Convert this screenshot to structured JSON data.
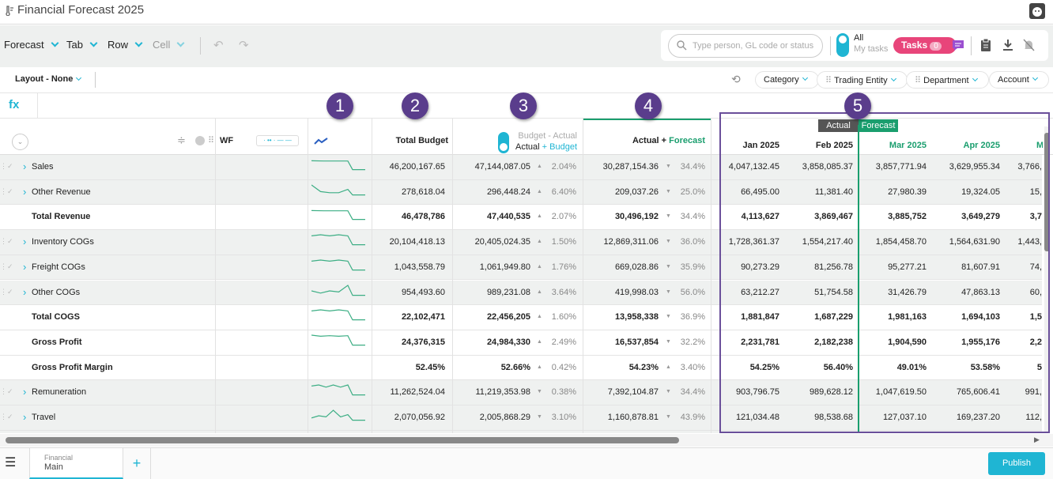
{
  "app": {
    "title": "Financial Forecast 2025"
  },
  "toolbar": {
    "menus": [
      "Forecast",
      "Tab",
      "Row",
      "Cell"
    ],
    "undo": "undo-icon",
    "redo": "redo-icon",
    "search_placeholder": "Type person, GL code or status",
    "toggle_all": "All",
    "toggle_my_tasks": "My tasks",
    "tasks_label": "Tasks",
    "tasks_count": "0"
  },
  "layout": {
    "label": "Layout - None",
    "filters": [
      "Category",
      "Trading Entity",
      "Department",
      "Account"
    ]
  },
  "formula": {
    "fx": "fx"
  },
  "header": {
    "wf": "WF",
    "total_budget": "Total Budget",
    "ba_top": "Budget - Actual",
    "ba_bottom_a": "Actual",
    "ba_bottom_b": "+ Budget",
    "af_a": "Actual",
    "af_plus": " + ",
    "af_b": "Forecast",
    "actual_tag": "Actual",
    "forecast_tag": "Forecast",
    "months": [
      "Jan 2025",
      "Feb 2025",
      "Mar 2025",
      "Apr 2025",
      "May 2025"
    ]
  },
  "callouts": [
    "1",
    "2",
    "3",
    "4",
    "5"
  ],
  "colors": {
    "accent": "#1fb5d3",
    "forecast": "#1a9e6e",
    "callout": "#5a3d8c",
    "tasks": "#e8457a"
  },
  "rows": [
    {
      "name": "Sales",
      "expand": true,
      "bold": false,
      "spark": [
        9,
        8.8,
        8.8,
        8.8,
        1,
        1
      ],
      "total_budget": "46,200,167.65",
      "ba": "47,144,087.05",
      "ba_dir": "up",
      "ba_pct": "2.04%",
      "af": "30,287,154.36",
      "af_dir": "down",
      "af_pct": "34.4%",
      "months": [
        "4,047,132.45",
        "3,858,085.37",
        "3,857,771.94",
        "3,629,955.34",
        "3,766,"
      ]
    },
    {
      "name": "Other Revenue",
      "expand": true,
      "bold": false,
      "spark": [
        10,
        4,
        3,
        3,
        6,
        1,
        1
      ],
      "total_budget": "278,618.04",
      "ba": "296,448.24",
      "ba_dir": "up",
      "ba_pct": "6.40%",
      "af": "209,037.26",
      "af_dir": "down",
      "af_pct": "25.0%",
      "months": [
        "66,495.00",
        "11,381.40",
        "27,980.39",
        "19,324.05",
        "15,"
      ]
    },
    {
      "name": "Total Revenue",
      "expand": false,
      "bold": true,
      "spark": [
        9,
        8.8,
        8.8,
        8.8,
        1,
        1
      ],
      "total_budget": "46,478,786",
      "ba": "47,440,535",
      "ba_dir": "up",
      "ba_pct": "2.07%",
      "af": "30,496,192",
      "af_dir": "down",
      "af_pct": "34.4%",
      "months": [
        "4,113,627",
        "3,869,467",
        "3,885,752",
        "3,649,279",
        "3,7"
      ]
    },
    {
      "name": "Inventory COGs",
      "expand": true,
      "bold": false,
      "spark": [
        9,
        10,
        9,
        10,
        9,
        1,
        1
      ],
      "total_budget": "20,104,418.13",
      "ba": "20,405,024.35",
      "ba_dir": "up",
      "ba_pct": "1.50%",
      "af": "12,869,311.06",
      "af_dir": "down",
      "af_pct": "36.0%",
      "months": [
        "1,728,361.37",
        "1,554,217.40",
        "1,854,458.70",
        "1,564,631.90",
        "1,443,"
      ]
    },
    {
      "name": "Freight COGs",
      "expand": true,
      "bold": false,
      "spark": [
        9,
        10,
        9,
        10,
        9,
        1,
        1
      ],
      "total_budget": "1,043,558.79",
      "ba": "1,061,949.80",
      "ba_dir": "up",
      "ba_pct": "1.76%",
      "af": "669,028.86",
      "af_dir": "down",
      "af_pct": "35.9%",
      "months": [
        "90,273.29",
        "81,256.78",
        "95,277.21",
        "81,607.91",
        "74,"
      ]
    },
    {
      "name": "Other COGs",
      "expand": true,
      "bold": false,
      "spark": [
        5,
        3,
        5,
        4,
        10,
        1,
        1
      ],
      "total_budget": "954,493.60",
      "ba": "989,231.08",
      "ba_dir": "up",
      "ba_pct": "3.64%",
      "af": "419,998.03",
      "af_dir": "down",
      "af_pct": "56.0%",
      "months": [
        "63,212.27",
        "51,754.58",
        "31,426.79",
        "47,863.13",
        "60,"
      ]
    },
    {
      "name": "Total COGS",
      "expand": false,
      "bold": true,
      "spark": [
        9,
        10,
        9,
        10,
        9,
        1,
        1
      ],
      "total_budget": "22,102,471",
      "ba": "22,456,205",
      "ba_dir": "up",
      "ba_pct": "1.60%",
      "af": "13,958,338",
      "af_dir": "down",
      "af_pct": "36.9%",
      "months": [
        "1,881,847",
        "1,687,229",
        "1,981,163",
        "1,694,103",
        "1,5"
      ]
    },
    {
      "name": "Gross Profit",
      "expand": false,
      "bold": true,
      "spark": [
        10,
        9,
        9.5,
        9,
        9.5,
        1,
        1
      ],
      "total_budget": "24,376,315",
      "ba": "24,984,330",
      "ba_dir": "up",
      "ba_pct": "2.49%",
      "af": "16,537,854",
      "af_dir": "down",
      "af_pct": "32.2%",
      "months": [
        "2,231,781",
        "2,182,238",
        "1,904,590",
        "1,955,176",
        "2,2"
      ]
    },
    {
      "name": "Gross Profit Margin",
      "expand": false,
      "bold": true,
      "spark": null,
      "total_budget": "52.45%",
      "ba": "52.66%",
      "ba_dir": "up",
      "ba_pct": "0.42%",
      "af": "54.23%",
      "af_dir": "up",
      "af_pct": "3.40%",
      "months": [
        "54.25%",
        "56.40%",
        "49.01%",
        "53.58%",
        "5"
      ]
    },
    {
      "name": "Remuneration",
      "expand": true,
      "bold": false,
      "spark": [
        9,
        10,
        8,
        10,
        8,
        10,
        1,
        1
      ],
      "total_budget": "11,262,524.04",
      "ba": "11,219,353.98",
      "ba_dir": "down",
      "ba_pct": "0.38%",
      "af": "7,392,104.87",
      "af_dir": "down",
      "af_pct": "34.4%",
      "months": [
        "903,796.75",
        "989,628.12",
        "1,047,619.50",
        "765,606.41",
        "991,"
      ]
    },
    {
      "name": "Travel",
      "expand": true,
      "bold": false,
      "spark": [
        3,
        5,
        4,
        10,
        4,
        6,
        1,
        1
      ],
      "total_budget": "2,070,056.92",
      "ba": "2,005,868.29",
      "ba_dir": "down",
      "ba_pct": "3.10%",
      "af": "1,160,878.81",
      "af_dir": "down",
      "af_pct": "43.9%",
      "months": [
        "121,034.48",
        "98,538.68",
        "127,037.10",
        "169,237.20",
        "112,"
      ]
    }
  ],
  "bottom": {
    "tab_top": "Financial",
    "tab_main": "Main",
    "add": "+",
    "publish": "Publish"
  }
}
